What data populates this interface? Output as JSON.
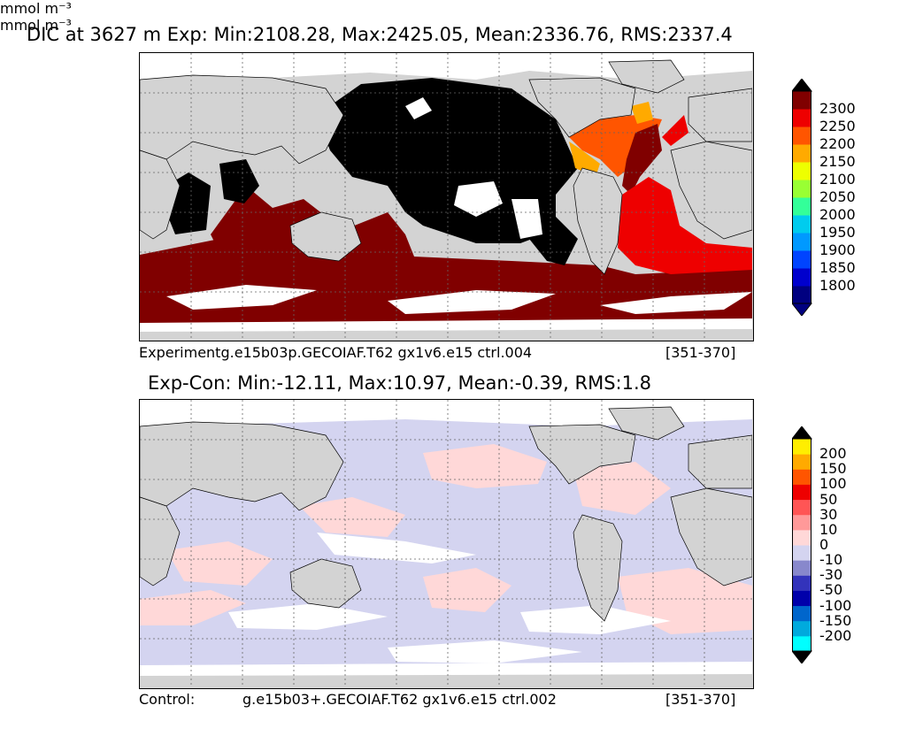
{
  "top_panel": {
    "title": "DIC at 3627 m Exp: Min:2108.28, Max:2425.05, Mean:2336.76, RMS:2337.4",
    "caption_left": "Experimentg.e15b03p.GECOIAF.T62 gx1v6.e15 ctrl.004",
    "caption_right": "[351-370]",
    "colorbar": {
      "unit": "mmol m⁻³",
      "ticks": [
        "2300",
        "2250",
        "2200",
        "2150",
        "2100",
        "2050",
        "2000",
        "1950",
        "1900",
        "1850",
        "1800"
      ],
      "colors": [
        "#000080",
        "#0000cd",
        "#0044ff",
        "#0099ff",
        "#00ccee",
        "#33ff99",
        "#99ff33",
        "#eeff00",
        "#ffaa00",
        "#ff5500",
        "#ee0000",
        "#800000"
      ],
      "under_color": "#000080",
      "over_color": "#000000"
    }
  },
  "bottom_panel": {
    "title": "Exp-Con: Min:-12.11, Max:10.97, Mean:-0.39, RMS:1.8",
    "caption_left": "Control:",
    "caption_mid": "g.e15b03+.GECOIAF.T62 gx1v6.e15 ctrl.002",
    "caption_right": "[351-370]",
    "colorbar": {
      "unit": "mmol m⁻³",
      "ticks": [
        "200",
        "150",
        "100",
        "50",
        "30",
        "10",
        "0",
        "-10",
        "-30",
        "-50",
        "-100",
        "-150",
        "-200"
      ],
      "colors": [
        "#00ffff",
        "#00aadd",
        "#0066cc",
        "#0000aa",
        "#3333bb",
        "#8888cc",
        "#d4d4f0",
        "#ffd8d8",
        "#ff9999",
        "#ff5555",
        "#ee0000",
        "#ff5500",
        "#ffaa00",
        "#ffee00"
      ],
      "under_color": "#000000",
      "over_color": "#000000"
    }
  },
  "colors": {
    "land": "#d3d3d3",
    "ocean_missing": "#ffffff",
    "black_region": "#000000",
    "dark_red": "#800000"
  }
}
